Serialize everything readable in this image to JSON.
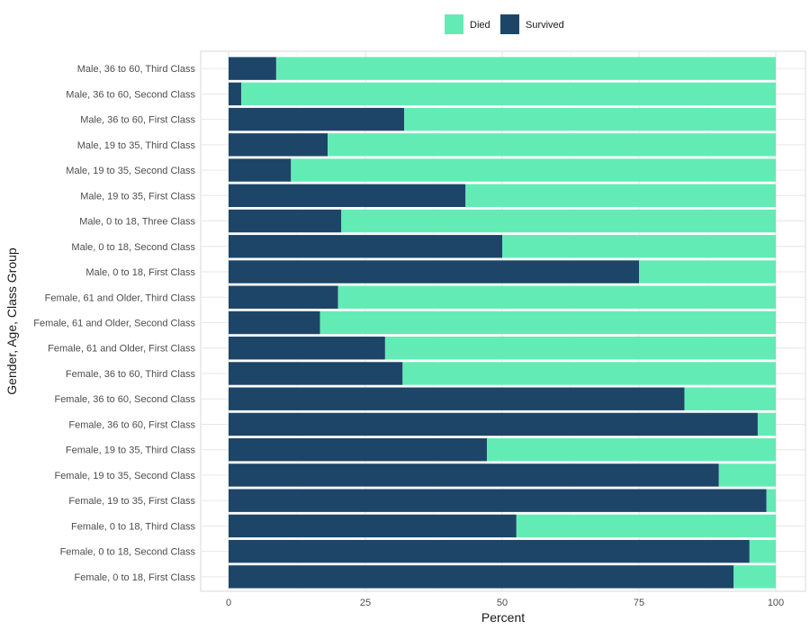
{
  "chart_data": {
    "type": "bar",
    "orientation": "horizontal",
    "stacked": true,
    "xlabel": "Percent",
    "ylabel": "Gender, Age, Class Group",
    "xlim": [
      0,
      100
    ],
    "xticks": [
      0,
      25,
      50,
      75,
      100
    ],
    "grid": true,
    "legend_position": "top",
    "categories": [
      "Female, 0 to 18, First Class",
      "Female, 0 to 18, Second Class",
      "Female, 0 to 18, Third Class",
      "Female, 19 to 35, First Class",
      "Female, 19 to 35, Second Class",
      "Female, 19 to 35, Third Class",
      "Female, 36 to 60, First Class",
      "Female, 36 to 60, Second Class",
      "Female, 36 to 60, Third Class",
      "Female, 61 and Older, First Class",
      "Female, 61 and Older, Second Class",
      "Female, 61 and Older, Third Class",
      "Male, 0 to 18, First Class",
      "Male, 0 to 18, Second Class",
      "Male, 0 to 18, Three Class",
      "Male, 19 to 35, First Class",
      "Male, 19 to 35, Second Class",
      "Male, 19 to 35, Third Class",
      "Male, 36 to 60, First Class",
      "Male, 36 to 60, Second Class",
      "Male, 36 to 60, Third Class"
    ],
    "series": [
      {
        "name": "Survived",
        "color": "#1d4568",
        "values": [
          92.3,
          95.2,
          52.6,
          98.3,
          89.6,
          47.2,
          96.7,
          83.3,
          31.8,
          28.6,
          16.7,
          20.0,
          75.0,
          50.0,
          20.6,
          43.3,
          11.4,
          18.1,
          32.1,
          2.3,
          8.7
        ]
      },
      {
        "name": "Died",
        "color": "#63ebb6",
        "values": [
          7.7,
          4.8,
          47.4,
          1.7,
          10.4,
          52.8,
          3.3,
          16.7,
          68.2,
          71.4,
          83.3,
          80.0,
          25.0,
          50.0,
          79.4,
          56.7,
          88.6,
          81.9,
          67.9,
          97.7,
          91.3
        ]
      }
    ],
    "legend_order": [
      "Died",
      "Survived"
    ]
  }
}
